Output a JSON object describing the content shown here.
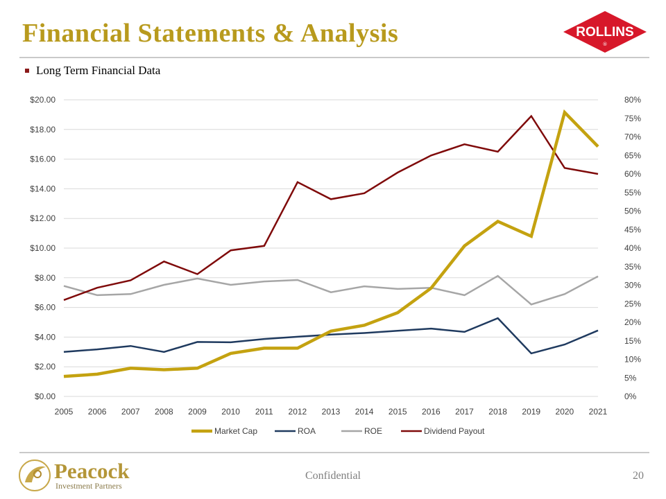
{
  "slide": {
    "title": "Financial Statements & Analysis",
    "bullet": "Long Term Financial Data",
    "footer_center": "Confidential",
    "page_number": "20",
    "logo_rollins_text": "ROLLINS",
    "logo_peacock_name": "Peacock",
    "logo_peacock_sub": "Investment Partners"
  },
  "colors": {
    "title": "#b89a1d",
    "market_cap": "#c4a210",
    "roa": "#1f3a5f",
    "roe": "#a6a6a6",
    "dividend": "#7f0a0a",
    "rollins_red": "#d7182a"
  },
  "chart_data": {
    "type": "line",
    "categories": [
      "2005",
      "2006",
      "2007",
      "2008",
      "2009",
      "2010",
      "2011",
      "2012",
      "2013",
      "2014",
      "2015",
      "2016",
      "2017",
      "2018",
      "2019",
      "2020",
      "2021"
    ],
    "left_axis": {
      "ylim": [
        0,
        20
      ],
      "ticks": [
        "$0.00",
        "$2.00",
        "$4.00",
        "$6.00",
        "$8.00",
        "$10.00",
        "$12.00",
        "$14.00",
        "$16.00",
        "$18.00",
        "$20.00"
      ]
    },
    "right_axis": {
      "ylim": [
        0,
        80
      ],
      "ticks": [
        "0%",
        "5%",
        "10%",
        "15%",
        "20%",
        "25%",
        "30%",
        "35%",
        "40%",
        "45%",
        "50%",
        "55%",
        "60%",
        "65%",
        "70%",
        "75%",
        "80%"
      ]
    },
    "grid": true,
    "legend_position": "bottom",
    "series": [
      {
        "name": "Market Cap",
        "axis": "left",
        "color_key": "market_cap",
        "width": 4.5,
        "values": [
          1.35,
          1.5,
          1.9,
          1.8,
          1.9,
          2.9,
          3.25,
          3.25,
          4.4,
          4.8,
          5.65,
          7.3,
          10.15,
          11.8,
          10.8,
          19.15,
          16.85
        ]
      },
      {
        "name": "ROA",
        "axis": "right",
        "color_key": "roa",
        "width": 2.5,
        "values": [
          12.0,
          12.7,
          13.6,
          12.0,
          14.7,
          14.6,
          15.5,
          16.1,
          16.7,
          17.1,
          17.7,
          18.3,
          17.4,
          21.1,
          11.6,
          14.0,
          17.8
        ]
      },
      {
        "name": "ROE",
        "axis": "right",
        "color_key": "roe",
        "width": 2.5,
        "values": [
          29.8,
          27.3,
          27.6,
          30.1,
          31.8,
          30.1,
          31.0,
          31.4,
          28.1,
          29.7,
          29.0,
          29.3,
          27.3,
          32.5,
          24.8,
          27.6,
          32.4
        ]
      },
      {
        "name": "Dividend Payout",
        "axis": "right",
        "color_key": "dividend",
        "width": 2.5,
        "values": [
          26.0,
          29.3,
          31.3,
          36.4,
          33.0,
          39.4,
          40.6,
          57.8,
          53.2,
          54.8,
          60.4,
          65.0,
          68.0,
          66.0,
          75.6,
          61.6,
          60.0
        ]
      }
    ]
  }
}
